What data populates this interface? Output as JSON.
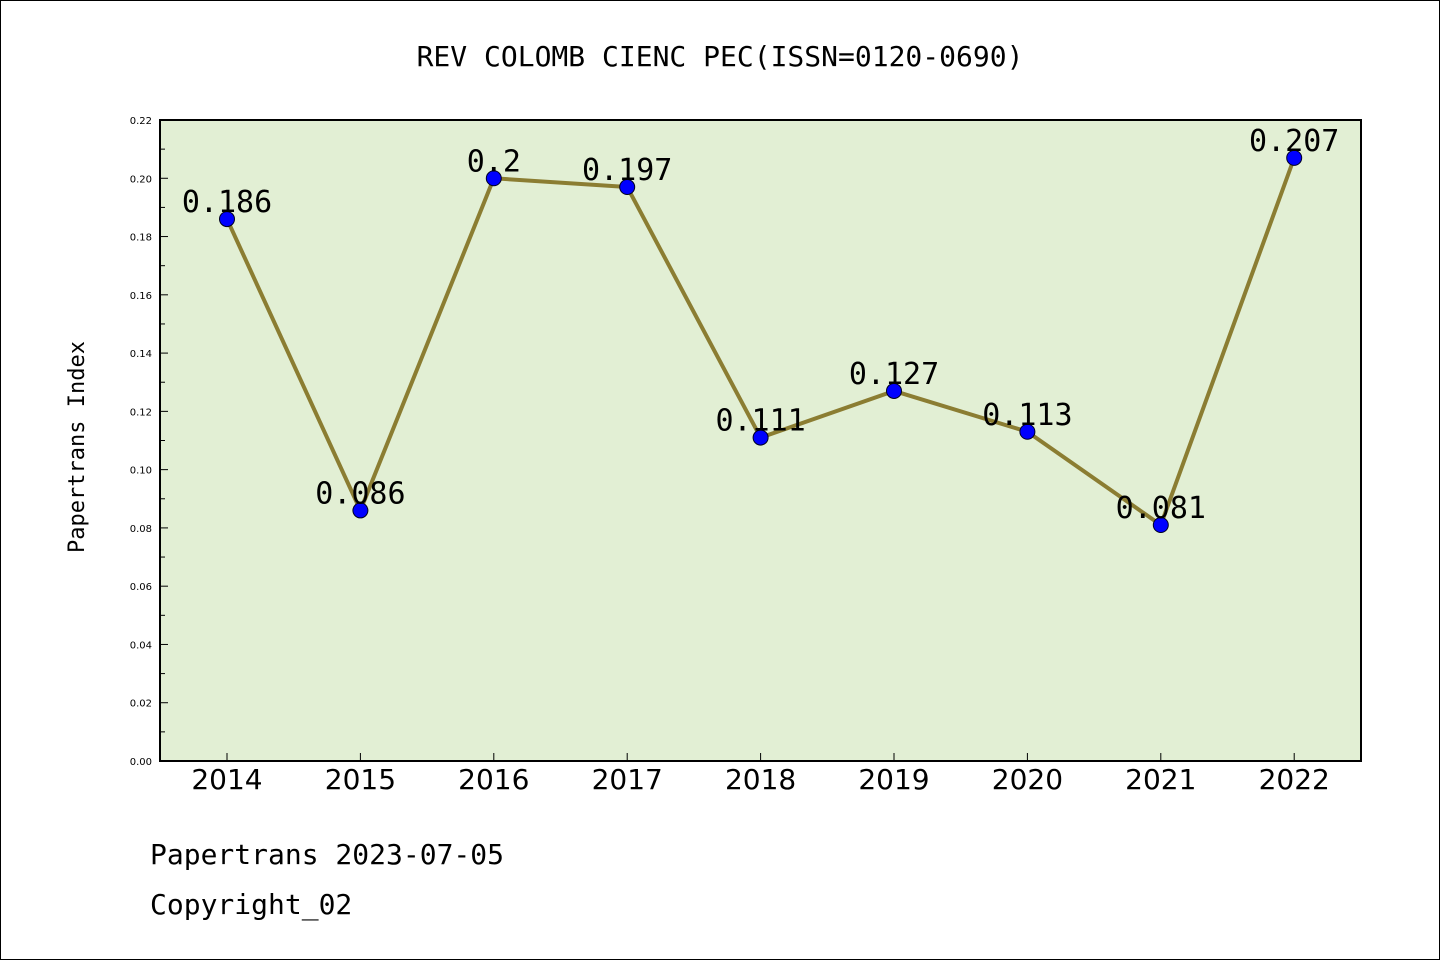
{
  "chart_data": {
    "type": "line",
    "title": "REV COLOMB CIENC PEC(ISSN=0120-0690)",
    "xlabel": "",
    "ylabel": "Papertrans Index",
    "categories": [
      "2014",
      "2015",
      "2016",
      "2017",
      "2018",
      "2019",
      "2020",
      "2021",
      "2022"
    ],
    "values": [
      0.186,
      0.086,
      0.2,
      0.197,
      0.111,
      0.127,
      0.113,
      0.081,
      0.207
    ],
    "data_labels": [
      "0.186",
      "0.086",
      "0.2",
      "0.197",
      "0.111",
      "0.127",
      "0.113",
      "0.081",
      "0.207"
    ],
    "ylim": [
      0,
      0.22
    ],
    "yticks": [
      "0.00",
      "0.02",
      "0.04",
      "0.06",
      "0.08",
      "0.10",
      "0.12",
      "0.14",
      "0.16",
      "0.18",
      "0.20",
      "0.22"
    ],
    "grid": false,
    "colors": {
      "plot_background": "#e2efd4",
      "line": "#8b7d32",
      "marker": "#0000ff"
    }
  },
  "footer": {
    "line1": "Papertrans 2023-07-05",
    "line2": "Copyright_02"
  }
}
